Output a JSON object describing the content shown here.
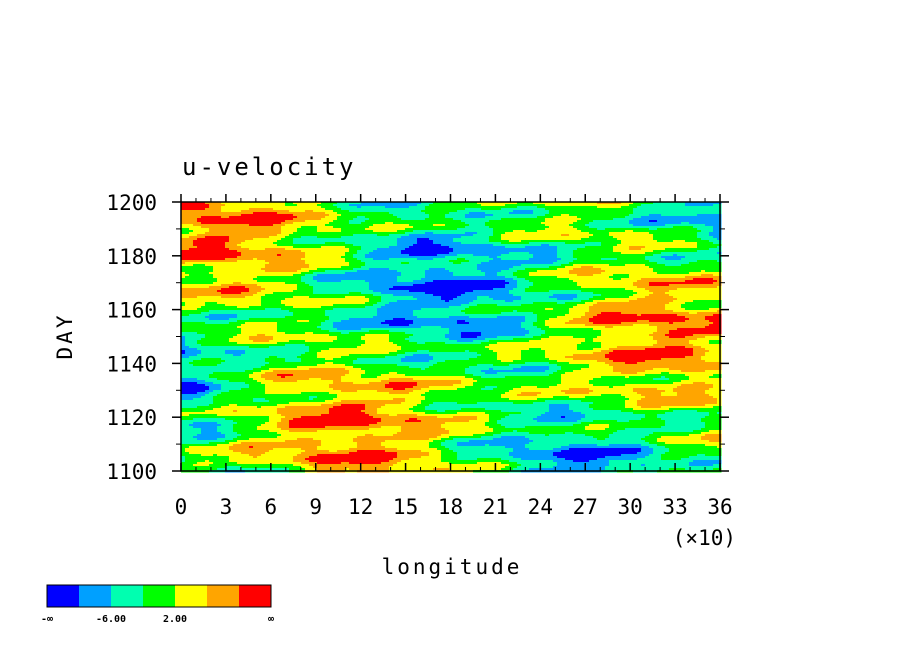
{
  "chart_data": {
    "type": "heatmap",
    "title": "u-velocity",
    "xlabel": "longitude",
    "ylabel": "DAY",
    "x_multiplier_label": "(×10)",
    "xlim": [
      0,
      36
    ],
    "ylim": [
      1100,
      1200
    ],
    "x_ticks": [
      "0",
      "3",
      "6",
      "9",
      "12",
      "15",
      "18",
      "21",
      "24",
      "27",
      "30",
      "33",
      "36"
    ],
    "y_ticks": [
      "1100",
      "1120",
      "1140",
      "1160",
      "1180",
      "1200"
    ],
    "colorbar": {
      "colors": [
        "#0000ff",
        "#00a0ff",
        "#00ffb0",
        "#00ff00",
        "#ffff00",
        "#ffa500",
        "#ff0000"
      ],
      "tick_labels": [
        "-∞",
        "-6.00",
        "2.00",
        "∞"
      ]
    }
  }
}
